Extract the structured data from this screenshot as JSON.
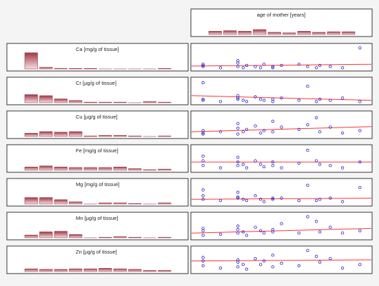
{
  "chart_data": [
    {
      "type": "bar",
      "title": "age of mother [years]",
      "values": [
        6,
        7,
        6,
        9,
        4,
        3,
        6,
        4,
        5,
        5
      ],
      "color": "#a03848",
      "ylim": [
        0,
        32
      ]
    },
    {
      "type": "bar",
      "title": "Ca [mg/g of tissue]",
      "values": [
        30,
        3,
        1,
        1,
        1,
        0,
        0,
        0,
        0,
        1
      ],
      "color": "#a03848",
      "ylim": [
        0,
        32
      ]
    },
    {
      "type": "bar",
      "title": "Cr [µg/g of tissue]",
      "values": [
        15,
        13,
        7,
        4,
        1,
        1,
        1,
        0,
        2,
        1
      ],
      "color": "#a03848",
      "ylim": [
        0,
        32
      ]
    },
    {
      "type": "bar",
      "title": "Cu [µg/g of tissue]",
      "values": [
        6,
        9,
        8,
        9,
        1,
        2,
        2,
        1,
        0,
        1
      ],
      "color": "#a03848",
      "ylim": [
        0,
        32
      ]
    },
    {
      "type": "bar",
      "title": "Fe [mg/g of tissue]",
      "values": [
        6,
        8,
        6,
        5,
        5,
        5,
        6,
        3,
        1,
        2
      ],
      "color": "#a03848",
      "ylim": [
        0,
        32
      ]
    },
    {
      "type": "bar",
      "title": "Mg [mg/g of tissue]",
      "values": [
        12,
        12,
        8,
        4,
        0,
        2,
        2,
        1,
        0,
        2
      ],
      "color": "#a03848",
      "ylim": [
        0,
        32
      ]
    },
    {
      "type": "bar",
      "title": "Mn [µg/g of tissue]",
      "values": [
        5,
        11,
        12,
        6,
        0,
        1,
        2,
        1,
        0,
        1
      ],
      "color": "#a03848",
      "ylim": [
        0,
        32
      ]
    },
    {
      "type": "bar",
      "title": "Zn [µg/g of tissue]",
      "values": [
        5,
        4,
        4,
        5,
        5,
        6,
        5,
        4,
        2,
        2
      ],
      "color": "#a03848",
      "ylim": [
        0,
        32
      ]
    },
    {
      "type": "scatter",
      "x": [
        5,
        5,
        5,
        15,
        25,
        25,
        25,
        28,
        30,
        35,
        38,
        40,
        45,
        45,
        50,
        60,
        65,
        70,
        72,
        78,
        85,
        95
      ],
      "values": [
        20,
        10,
        15,
        5,
        25,
        35,
        10,
        5,
        15,
        10,
        5,
        20,
        10,
        5,
        15,
        20,
        10,
        5,
        15,
        10,
        5,
        90
      ],
      "trend_line": [
        12,
        20
      ],
      "color": "#2020d0",
      "line_color": "#ff3030",
      "xlim": [
        0,
        100
      ],
      "ylim": [
        0,
        100
      ]
    },
    {
      "type": "scatter",
      "x": [
        5,
        5,
        5,
        15,
        25,
        25,
        25,
        28,
        30,
        35,
        38,
        40,
        45,
        45,
        50,
        60,
        65,
        70,
        72,
        78,
        85,
        95
      ],
      "values": [
        85,
        15,
        10,
        5,
        30,
        20,
        15,
        10,
        5,
        25,
        15,
        10,
        15,
        5,
        20,
        10,
        70,
        5,
        15,
        10,
        20,
        5
      ],
      "trend_line": [
        30,
        10
      ],
      "color": "#2020d0",
      "line_color": "#ff3030",
      "xlim": [
        0,
        100
      ],
      "ylim": [
        0,
        100
      ]
    },
    {
      "type": "scatter",
      "x": [
        5,
        5,
        5,
        15,
        25,
        25,
        25,
        28,
        30,
        35,
        38,
        40,
        45,
        45,
        50,
        60,
        65,
        70,
        72,
        78,
        85,
        95
      ],
      "values": [
        25,
        15,
        10,
        20,
        55,
        35,
        10,
        20,
        30,
        45,
        15,
        25,
        65,
        20,
        40,
        30,
        50,
        80,
        20,
        40,
        15,
        25
      ],
      "trend_line": [
        20,
        42
      ],
      "color": "#2020d0",
      "line_color": "#ff3030",
      "xlim": [
        0,
        100
      ],
      "ylim": [
        0,
        100
      ]
    },
    {
      "type": "scatter",
      "x": [
        5,
        5,
        5,
        15,
        25,
        25,
        25,
        28,
        30,
        35,
        38,
        40,
        45,
        45,
        50,
        60,
        65,
        70,
        72,
        78,
        85,
        95
      ],
      "values": [
        40,
        20,
        60,
        10,
        55,
        35,
        20,
        25,
        10,
        40,
        25,
        15,
        35,
        20,
        10,
        30,
        85,
        40,
        25,
        20,
        10,
        35
      ],
      "trend_line": [
        35,
        35
      ],
      "color": "#2020d0",
      "line_color": "#ff3030",
      "xlim": [
        0,
        100
      ],
      "ylim": [
        0,
        100
      ]
    },
    {
      "type": "scatter",
      "x": [
        5,
        5,
        5,
        15,
        25,
        25,
        25,
        28,
        30,
        35,
        38,
        40,
        45,
        45,
        50,
        60,
        65,
        70,
        72,
        78,
        85,
        95
      ],
      "values": [
        60,
        35,
        20,
        15,
        50,
        30,
        25,
        20,
        15,
        35,
        20,
        10,
        25,
        20,
        25,
        15,
        80,
        15,
        20,
        25,
        10,
        70
      ],
      "trend_line": [
        20,
        25
      ],
      "color": "#2020d0",
      "line_color": "#ff3030",
      "xlim": [
        0,
        100
      ],
      "ylim": [
        0,
        100
      ]
    },
    {
      "type": "scatter",
      "x": [
        5,
        5,
        5,
        15,
        25,
        25,
        25,
        28,
        30,
        35,
        38,
        40,
        45,
        45,
        50,
        60,
        65,
        70,
        72,
        78,
        85,
        95
      ],
      "values": [
        40,
        30,
        10,
        15,
        50,
        35,
        20,
        25,
        10,
        45,
        30,
        20,
        35,
        25,
        60,
        20,
        90,
        70,
        25,
        45,
        20,
        30
      ],
      "trend_line": [
        20,
        40
      ],
      "color": "#2020d0",
      "line_color": "#ff3030",
      "xlim": [
        0,
        100
      ],
      "ylim": [
        0,
        100
      ]
    },
    {
      "type": "scatter",
      "x": [
        5,
        5,
        5,
        15,
        25,
        25,
        25,
        28,
        30,
        35,
        38,
        40,
        45,
        45,
        50,
        60,
        65,
        70,
        72,
        78,
        85,
        95
      ],
      "values": [
        45,
        25,
        60,
        15,
        50,
        40,
        20,
        30,
        10,
        55,
        30,
        45,
        70,
        20,
        35,
        25,
        90,
        65,
        40,
        55,
        15,
        30
      ],
      "trend_line": [
        45,
        50
      ],
      "color": "#2020d0",
      "line_color": "#ff3030",
      "xlim": [
        0,
        100
      ],
      "ylim": [
        0,
        100
      ]
    }
  ]
}
